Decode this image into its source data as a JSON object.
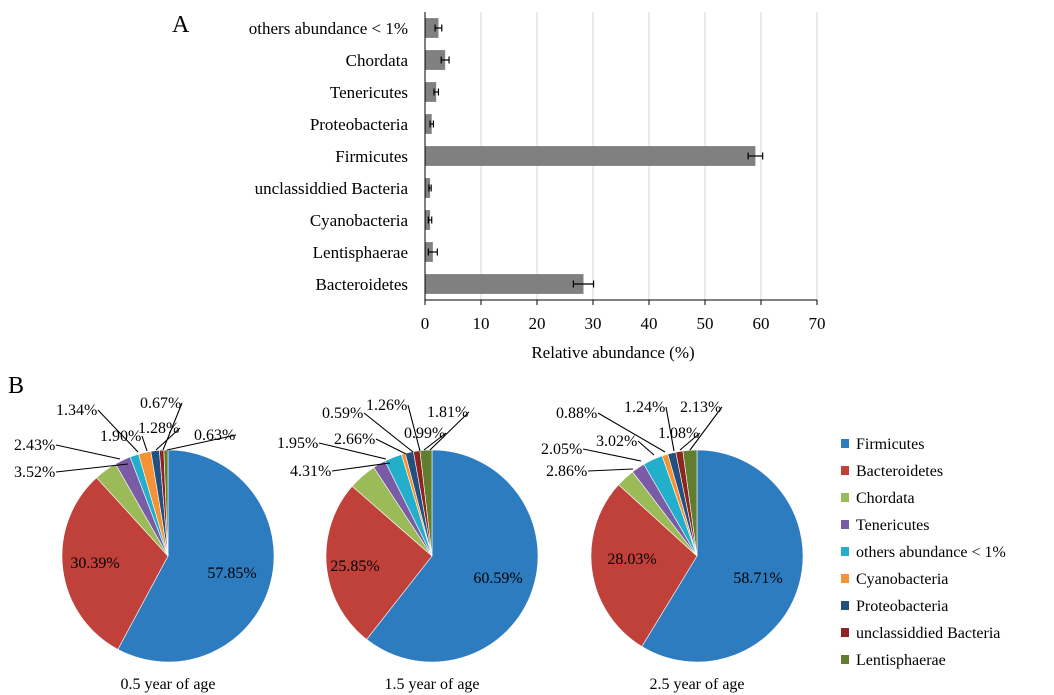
{
  "panel_labels": {
    "a": "A",
    "b": "B"
  },
  "chart_data": [
    {
      "type": "bar",
      "orientation": "horizontal",
      "panel": "A",
      "xlabel": "Relative abundance (%)",
      "ylabel": "",
      "xlim": [
        0,
        70
      ],
      "xticks": [
        0,
        10,
        20,
        30,
        40,
        50,
        60,
        70
      ],
      "grid": true,
      "bar_color": "#808080",
      "categories": [
        "others abundance < 1%",
        "Chordata",
        "Tenericutes",
        "Proteobacteria",
        "Firmicutes",
        "unclassiddied Bacteria",
        "Cyanobacteria",
        "Lentisphaerae",
        "Bacteroidetes"
      ],
      "values": [
        2.4,
        3.6,
        2.0,
        1.2,
        59.0,
        0.9,
        0.9,
        1.4,
        28.3
      ],
      "errors": [
        0.6,
        0.7,
        0.4,
        0.3,
        1.3,
        0.2,
        0.3,
        0.8,
        1.8
      ]
    },
    {
      "type": "pie",
      "panel": "B",
      "legend_position": "right",
      "legend": [
        {
          "name": "Firmicutes",
          "color": "#2E7CC0"
        },
        {
          "name": "Bacteroidetes",
          "color": "#C0403A"
        },
        {
          "name": "Chordata",
          "color": "#9BBB59"
        },
        {
          "name": "Tenericutes",
          "color": "#7A5CA6"
        },
        {
          "name": "others abundance < 1%",
          "color": "#23AFCB"
        },
        {
          "name": "Cyanobacteria",
          "color": "#F49234"
        },
        {
          "name": "Proteobacteria",
          "color": "#24507F"
        },
        {
          "name": "unclassiddied Bacteria",
          "color": "#8C2420"
        },
        {
          "name": "Lentisphaerae",
          "color": "#617E2E"
        }
      ],
      "pies": [
        {
          "title": "0.5 year of age",
          "values": [
            57.85,
            30.39,
            3.52,
            2.43,
            1.34,
            1.9,
            1.28,
            0.67,
            0.63
          ],
          "labels": [
            "57.85%",
            "30.39%",
            "3.52%",
            "2.43%",
            "1.34%",
            "1.90%",
            "1.28%",
            "0.67%",
            "0.63%"
          ]
        },
        {
          "title": "1.5 year of age",
          "values": [
            60.59,
            25.85,
            4.31,
            1.95,
            2.66,
            0.59,
            1.26,
            0.99,
            1.81
          ],
          "labels": [
            "60.59%",
            "25.85%",
            "4.31%",
            "1.95%",
            "2.66%",
            "0.59%",
            "1.26%",
            "0.99%",
            "1.81%"
          ]
        },
        {
          "title": "2.5 year of age",
          "values": [
            58.71,
            28.03,
            2.86,
            2.05,
            3.02,
            0.88,
            1.24,
            1.08,
            2.13
          ],
          "labels": [
            "58.71%",
            "28.03%",
            "2.86%",
            "2.05%",
            "3.02%",
            "0.88%",
            "1.24%",
            "1.08%",
            "2.13%"
          ]
        }
      ]
    }
  ]
}
